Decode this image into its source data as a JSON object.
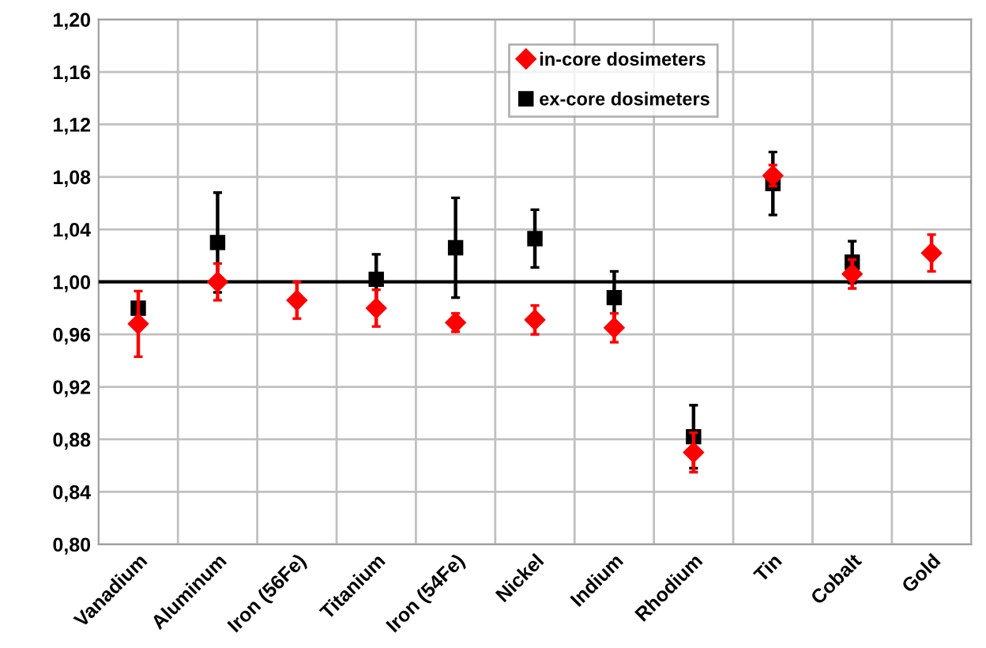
{
  "chart_data": {
    "type": "scatter",
    "categories": [
      "Vanadium",
      "Aluminum",
      "Iron (56Fe)",
      "Titanium",
      "Iron (54Fe)",
      "Nickel",
      "Indium",
      "Rhodium",
      "Tin",
      "Cobalt",
      "Gold"
    ],
    "series": [
      {
        "name": "in-core dosimeters",
        "color": "#ff0000",
        "marker": "diamond",
        "values": [
          0.968,
          1.0,
          0.986,
          0.98,
          0.969,
          0.971,
          0.965,
          0.87,
          1.081,
          1.006,
          1.022
        ],
        "errors": [
          0.025,
          0.014,
          0.014,
          0.014,
          0.007,
          0.011,
          0.011,
          0.015,
          0.008,
          0.011,
          0.014
        ]
      },
      {
        "name": "ex-core dosimeters",
        "color": "#000000",
        "marker": "square",
        "values": [
          0.98,
          1.03,
          null,
          1.002,
          1.026,
          1.033,
          0.988,
          0.882,
          1.075,
          1.015,
          null
        ],
        "errors": [
          0.004,
          0.038,
          null,
          0.019,
          0.038,
          0.022,
          0.02,
          0.024,
          0.024,
          0.016,
          null
        ]
      }
    ],
    "ylim": [
      0.8,
      1.2
    ],
    "yticks": [
      {
        "value": 0.8,
        "label": "0,80"
      },
      {
        "value": 0.84,
        "label": "0,84"
      },
      {
        "value": 0.88,
        "label": "0,88"
      },
      {
        "value": 0.92,
        "label": "0,92"
      },
      {
        "value": 0.96,
        "label": "0,96"
      },
      {
        "value": 1.0,
        "label": "1,00"
      },
      {
        "value": 1.04,
        "label": "1,04"
      },
      {
        "value": 1.08,
        "label": "1,08"
      },
      {
        "value": 1.12,
        "label": "1,12"
      },
      {
        "value": 1.16,
        "label": "1,16"
      },
      {
        "value": 1.2,
        "label": "1,20"
      }
    ],
    "ref_lines": [
      {
        "axis": "y",
        "value": 1.0,
        "color": "#000000"
      }
    ],
    "grid": true,
    "legend": "top right"
  }
}
